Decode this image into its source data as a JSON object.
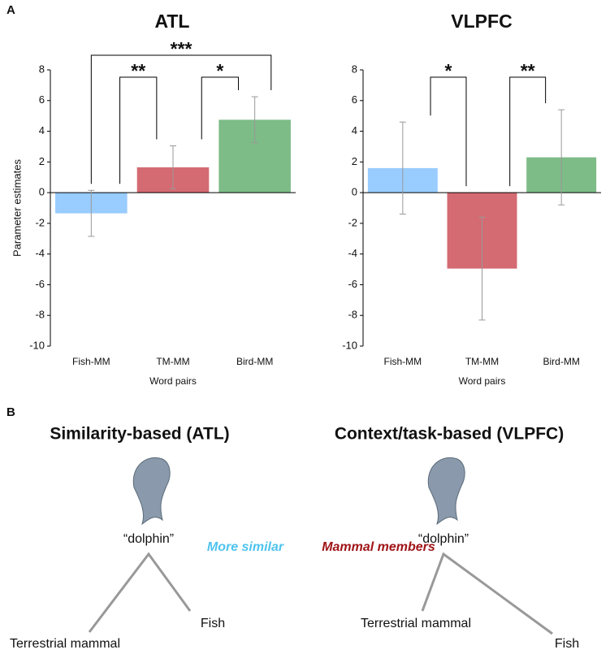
{
  "chart_data": [
    {
      "type": "bar",
      "panel": "A",
      "title": "ATL",
      "ylabel": "Parameter estimates",
      "xlabel": "Word pairs",
      "categories": [
        "Fish-MM",
        "TM-MM",
        "Bird-MM"
      ],
      "values": [
        -1.35,
        1.65,
        4.75
      ],
      "errors": [
        1.5,
        1.4,
        1.5
      ],
      "colors": [
        "#99ccff",
        "#d46a72",
        "#7dbb87"
      ],
      "ylim": [
        -10,
        8
      ],
      "yticks": [
        -10,
        -8,
        -6,
        -4,
        -2,
        0,
        2,
        4,
        6,
        8
      ],
      "annotations": [
        {
          "label": "***",
          "between": [
            "Fish-MM",
            "Bird-MM"
          ]
        },
        {
          "label": "**",
          "between": [
            "Fish-MM",
            "TM-MM"
          ]
        },
        {
          "label": "*",
          "between": [
            "TM-MM",
            "Bird-MM"
          ]
        }
      ]
    },
    {
      "type": "bar",
      "title": "VLPFC",
      "xlabel": "Word pairs",
      "categories": [
        "Fish-MM",
        "TM-MM",
        "Bird-MM"
      ],
      "values": [
        1.6,
        -4.95,
        2.3
      ],
      "errors": [
        3.0,
        3.35,
        3.1
      ],
      "colors": [
        "#99ccff",
        "#d46a72",
        "#7dbb87"
      ],
      "ylim": [
        -10,
        8
      ],
      "yticks": [
        -10,
        -8,
        -6,
        -4,
        -2,
        0,
        2,
        4,
        6,
        8
      ],
      "annotations": [
        {
          "label": "*",
          "between": [
            "Fish-MM",
            "TM-MM"
          ]
        },
        {
          "label": "**",
          "between": [
            "TM-MM",
            "Bird-MM"
          ]
        }
      ]
    }
  ],
  "diagram": {
    "panel": "B",
    "left": {
      "title": "Similarity-based (ATL)",
      "word": "“dolphin”",
      "relation": "More similar",
      "near": "Fish",
      "far": "Terrestrial mammal"
    },
    "right": {
      "title": "Context/task-based (VLPFC)",
      "word": "“dolphin”",
      "relation": "Mammal members",
      "near": "Terrestrial mammal",
      "far": "Fish"
    }
  }
}
